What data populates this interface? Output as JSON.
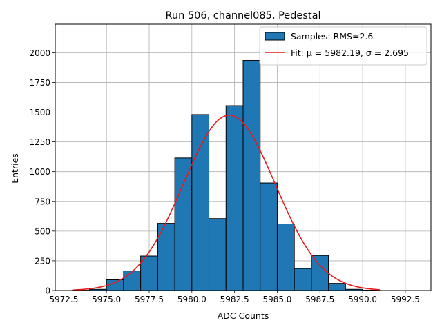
{
  "chart_data": {
    "type": "bar",
    "title": "Run 506, channel085, Pedestal",
    "xlabel": "ADC Counts",
    "ylabel": "Entries",
    "xlim": [
      5972.0,
      5994.0
    ],
    "ylim": [
      0,
      2240
    ],
    "xticks": [
      5972.5,
      5975.0,
      5977.5,
      5980.0,
      5982.5,
      5985.0,
      5987.5,
      5990.0,
      5992.5
    ],
    "xtick_labels": [
      "5972.5",
      "5975.0",
      "5977.5",
      "5980.0",
      "5982.5",
      "5985.0",
      "5987.5",
      "5990.0",
      "5992.5"
    ],
    "yticks": [
      0,
      250,
      500,
      750,
      1000,
      1250,
      1500,
      1750,
      2000
    ],
    "ytick_labels": [
      "0",
      "250",
      "500",
      "750",
      "1000",
      "1250",
      "1500",
      "1750",
      "2000"
    ],
    "grid": true,
    "legend_position": "top-right",
    "bin_width": 1,
    "bins": [
      {
        "x0": 5973,
        "value": 2
      },
      {
        "x0": 5974,
        "value": 10
      },
      {
        "x0": 5975,
        "value": 90
      },
      {
        "x0": 5976,
        "value": 165
      },
      {
        "x0": 5977,
        "value": 290
      },
      {
        "x0": 5978,
        "value": 565
      },
      {
        "x0": 5979,
        "value": 1115
      },
      {
        "x0": 5980,
        "value": 1480
      },
      {
        "x0": 5981,
        "value": 605
      },
      {
        "x0": 5982,
        "value": 1555
      },
      {
        "x0": 5983,
        "value": 1935
      },
      {
        "x0": 5984,
        "value": 905
      },
      {
        "x0": 5985,
        "value": 560
      },
      {
        "x0": 5986,
        "value": 185
      },
      {
        "x0": 5987,
        "value": 295
      },
      {
        "x0": 5988,
        "value": 60
      },
      {
        "x0": 5989,
        "value": 10
      },
      {
        "x0": 5990,
        "value": 3
      }
    ],
    "fit": {
      "mu": 5982.19,
      "sigma": 2.695,
      "amplitude": 1475,
      "x_range": [
        5973.0,
        5991.0
      ]
    },
    "series": [
      {
        "name": "Samples: RMS=2.6",
        "color": "#1f77b4",
        "kind": "histogram"
      },
      {
        "name": "Fit: μ = 5982.19, σ = 2.695",
        "color": "#e41a1c",
        "kind": "line"
      }
    ]
  }
}
